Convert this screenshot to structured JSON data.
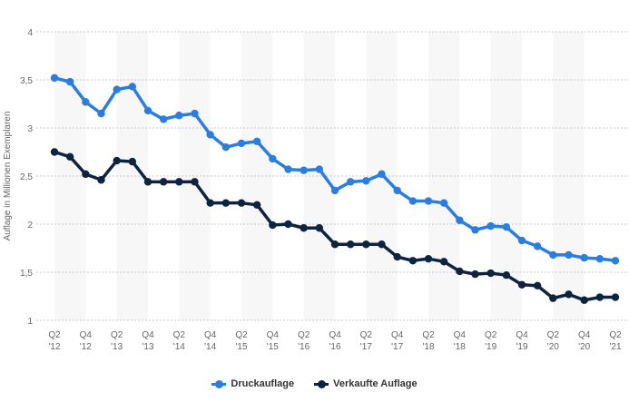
{
  "chart_data": {
    "type": "line",
    "title": "",
    "xlabel": "",
    "ylabel": "Auflage in Millionen Exemplaren",
    "ylim": [
      1,
      4
    ],
    "yticks": [
      "1",
      "1,5",
      "2",
      "2,5",
      "3",
      "3,5",
      "4"
    ],
    "ytick_values": [
      1,
      1.5,
      2,
      2.5,
      3,
      3.5,
      4
    ],
    "grid": true,
    "legend_position": "bottom-center",
    "x": [
      "Q2 '12",
      "Q3 '12",
      "Q4 '12",
      "Q1 '13",
      "Q2 '13",
      "Q3 '13",
      "Q4 '13",
      "Q1 '14",
      "Q2 '14",
      "Q3 '14",
      "Q4 '14",
      "Q1 '15",
      "Q2 '15",
      "Q3 '15",
      "Q4 '15",
      "Q1 '16",
      "Q2 '16",
      "Q3 '16",
      "Q4 '16",
      "Q1 '17",
      "Q2 '17",
      "Q3 '17",
      "Q4 '17",
      "Q1 '18",
      "Q2 '18",
      "Q3 '18",
      "Q4 '18",
      "Q1 '19",
      "Q2 '19",
      "Q3 '19",
      "Q4 '19",
      "Q1 '20",
      "Q2 '20",
      "Q3 '20",
      "Q4 '20",
      "Q1 '21",
      "Q2 '21"
    ],
    "xtick_labels": [
      [
        "Q2",
        "'12"
      ],
      [
        "Q4",
        "'12"
      ],
      [
        "Q2",
        "'13"
      ],
      [
        "Q4",
        "'13"
      ],
      [
        "Q2",
        "'14"
      ],
      [
        "Q4",
        "'14"
      ],
      [
        "Q2",
        "'15"
      ],
      [
        "Q4",
        "'15"
      ],
      [
        "Q2",
        "'16"
      ],
      [
        "Q4",
        "'16"
      ],
      [
        "Q2",
        "'17"
      ],
      [
        "Q4",
        "'17"
      ],
      [
        "Q2",
        "'18"
      ],
      [
        "Q4",
        "'18"
      ],
      [
        "Q2",
        "'19"
      ],
      [
        "Q4",
        "'19"
      ],
      [
        "Q2",
        "'20"
      ],
      [
        "Q4",
        "'20"
      ],
      [
        "Q2",
        "'21"
      ]
    ],
    "series": [
      {
        "name": "Druckauflage",
        "color": "#2a7de1",
        "values": [
          3.52,
          3.48,
          3.27,
          3.15,
          3.4,
          3.43,
          3.18,
          3.09,
          3.13,
          3.15,
          2.93,
          2.8,
          2.84,
          2.86,
          2.68,
          2.57,
          2.56,
          2.57,
          2.35,
          2.44,
          2.45,
          2.52,
          2.35,
          2.24,
          2.24,
          2.22,
          2.04,
          1.94,
          1.98,
          1.97,
          1.83,
          1.77,
          1.68,
          1.68,
          1.65,
          1.64,
          1.62
        ]
      },
      {
        "name": "Verkaufte Auflage",
        "color": "#0d2340",
        "values": [
          2.75,
          2.7,
          2.52,
          2.46,
          2.66,
          2.65,
          2.44,
          2.44,
          2.44,
          2.44,
          2.22,
          2.22,
          2.22,
          2.2,
          1.99,
          2.0,
          1.96,
          1.96,
          1.79,
          1.79,
          1.79,
          1.79,
          1.66,
          1.62,
          1.64,
          1.61,
          1.51,
          1.48,
          1.49,
          1.47,
          1.37,
          1.36,
          1.23,
          1.27,
          1.21,
          1.24,
          1.24
        ]
      }
    ]
  }
}
